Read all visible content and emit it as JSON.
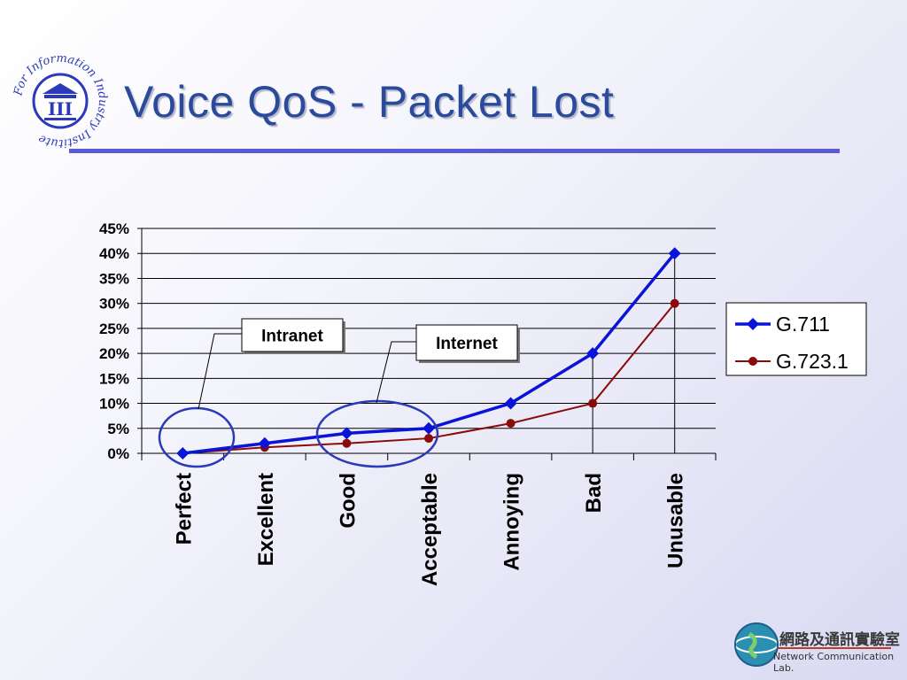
{
  "slide": {
    "title": "Voice QoS - Packet Lost"
  },
  "logo_iii": {
    "text": "For Information Industry Institute",
    "mark": "III"
  },
  "footer": {
    "chinese": "網路及通訊實驗室",
    "english": "Network Communication Lab."
  },
  "callouts": [
    {
      "label": "Intranet"
    },
    {
      "label": "Internet"
    }
  ],
  "colors": {
    "g711": "#0a14d8",
    "g7231": "#8b0a0a",
    "title": "#2a4a9a",
    "ellipse": "#2a3ab8"
  },
  "chart_data": {
    "type": "line",
    "categories": [
      "Perfect",
      "Excellent",
      "Good",
      "Acceptable",
      "Annoying",
      "Bad",
      "Unusable"
    ],
    "ylim": [
      0,
      45
    ],
    "yticks": [
      "0%",
      "5%",
      "10%",
      "15%",
      "20%",
      "25%",
      "30%",
      "35%",
      "40%",
      "45%"
    ],
    "grid": "horizontal",
    "legend_position": "right",
    "series": [
      {
        "name": "G.711",
        "values": [
          0,
          2,
          4,
          5,
          10,
          20,
          40
        ],
        "marker": "diamond"
      },
      {
        "name": "G.723.1",
        "values": [
          0,
          1.2,
          2,
          3,
          6,
          10,
          30
        ],
        "marker": "circle"
      }
    ]
  }
}
